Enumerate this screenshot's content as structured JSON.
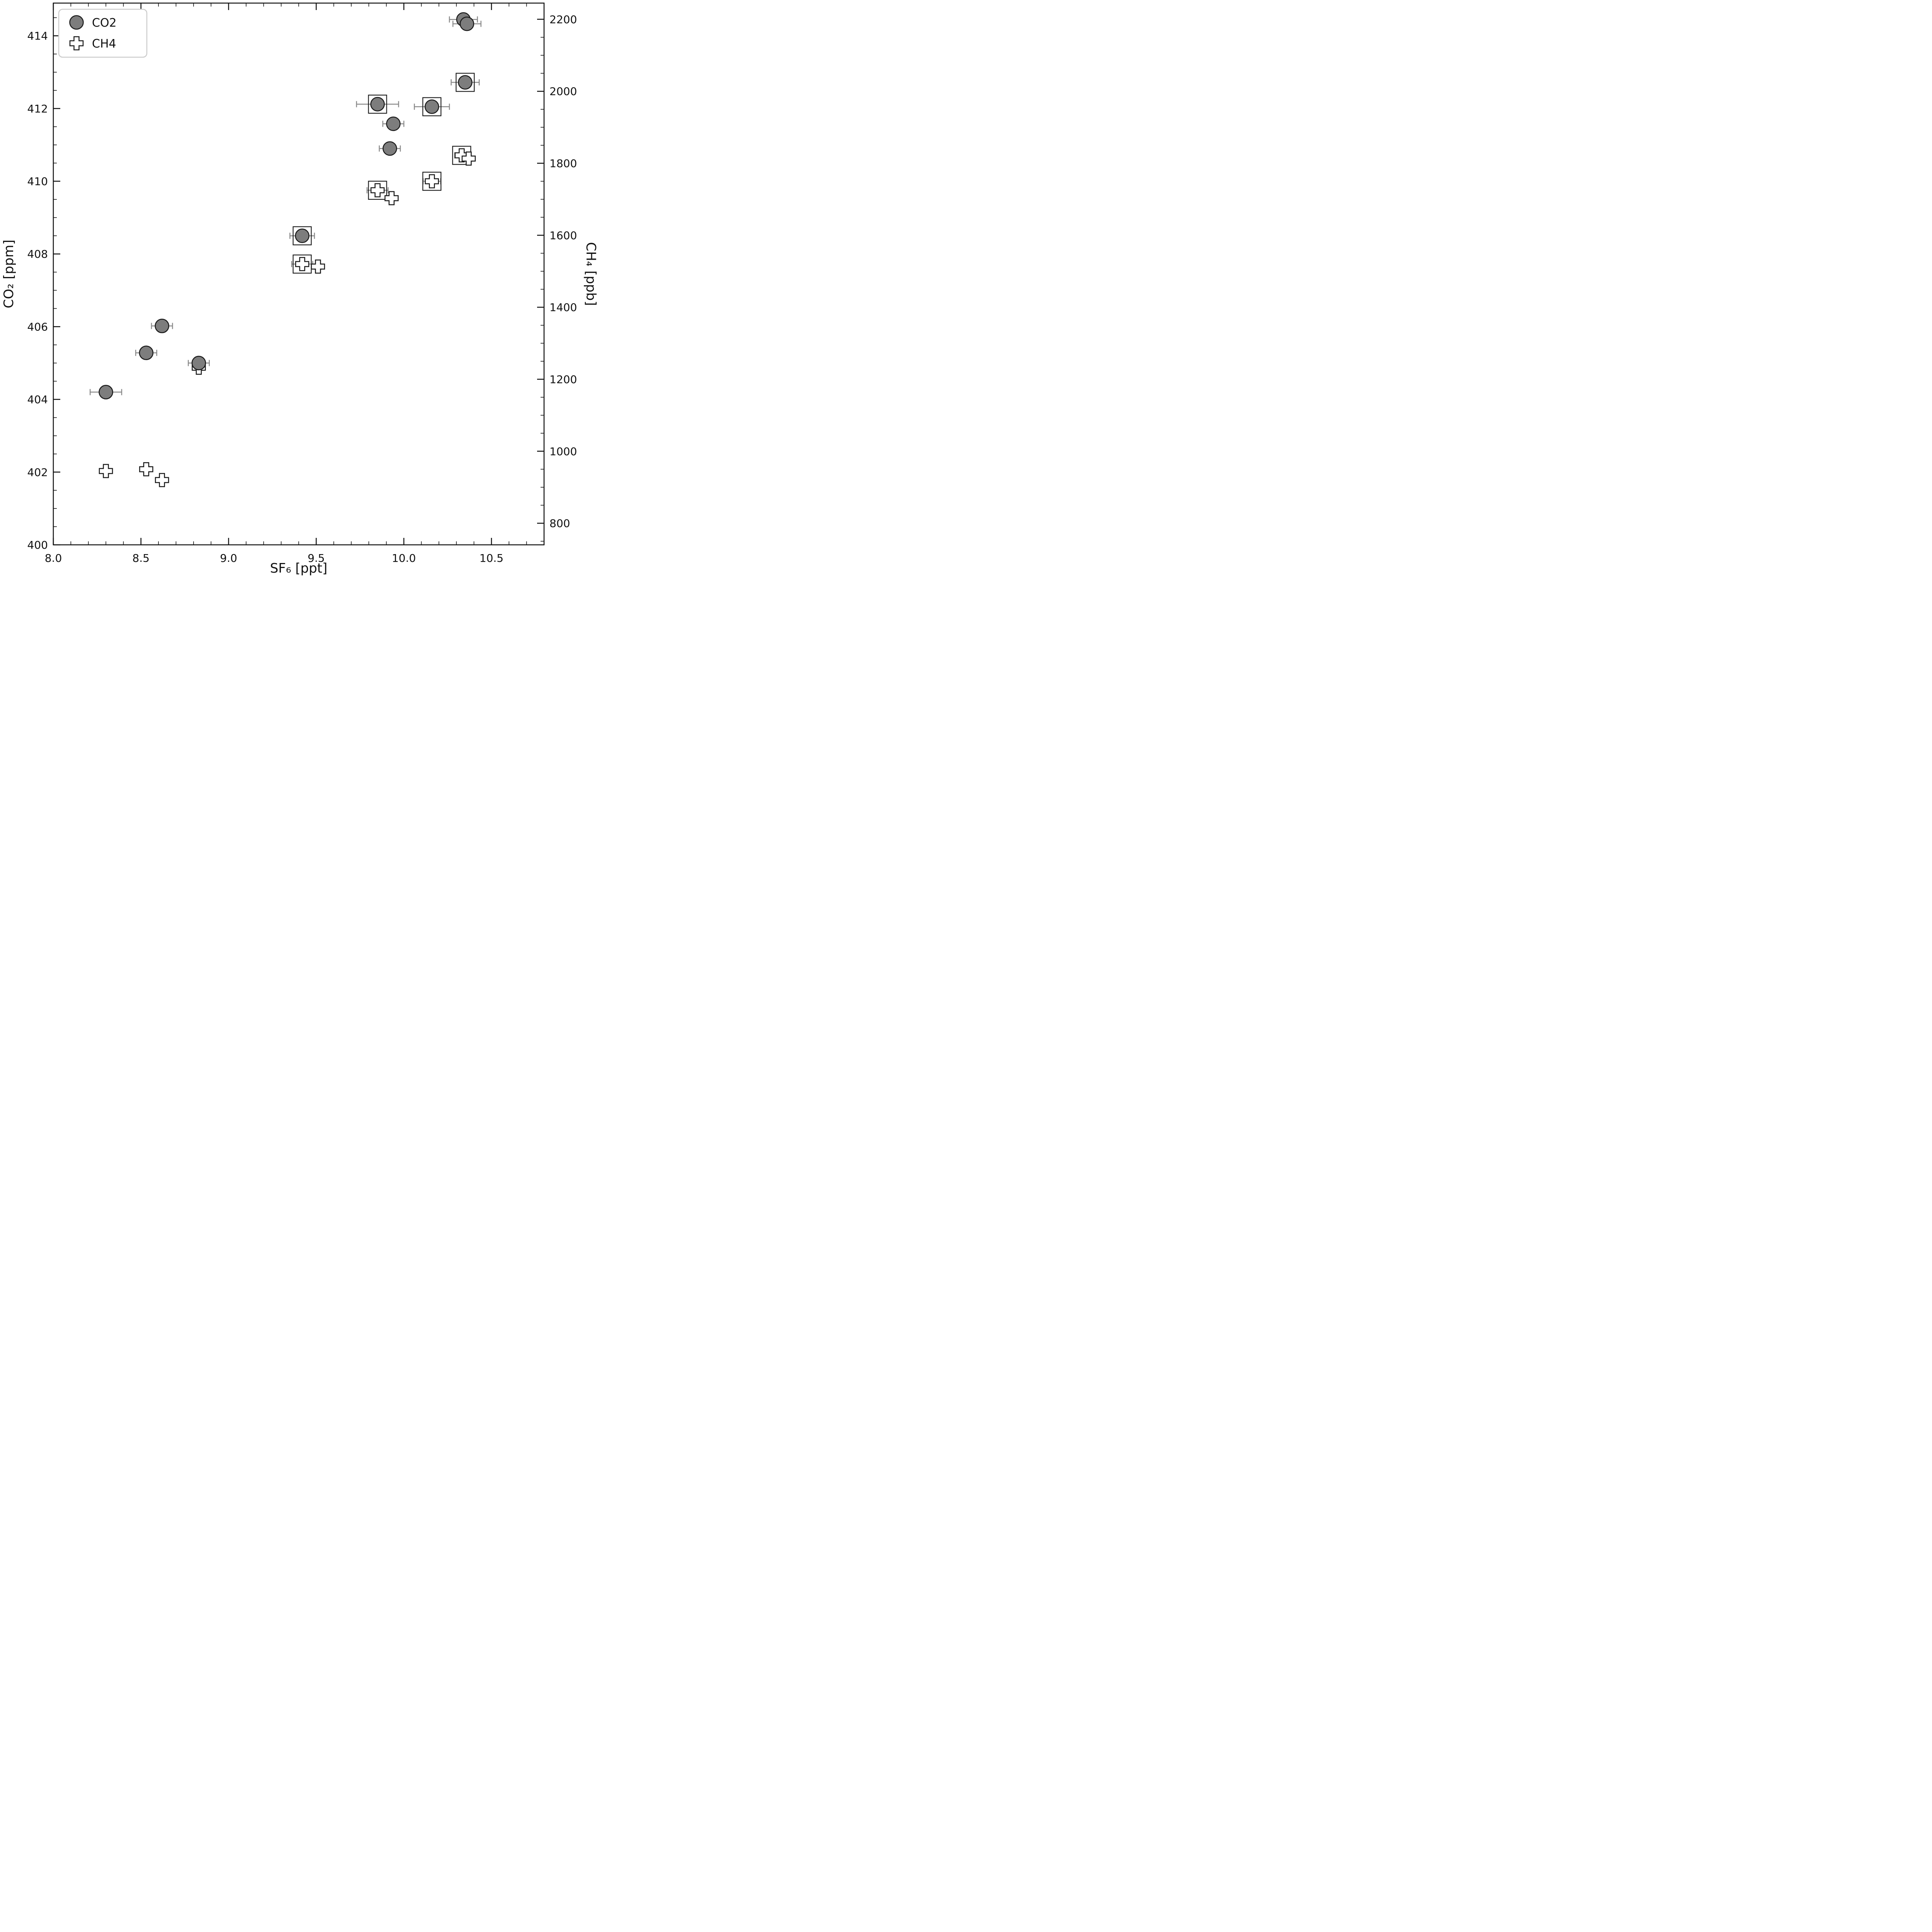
{
  "chart_data": {
    "type": "scatter",
    "title": "",
    "xlabel": "SF₆ [ppt]",
    "ylabel_left": "CO₂ [ppm]",
    "ylabel_right": "CH₄ [ppb]",
    "xlim": [
      8.0,
      10.8
    ],
    "ylim_left": [
      400,
      414.9
    ],
    "ylim_right": [
      740,
      2245
    ],
    "x_ticks": [
      8.0,
      8.5,
      9.0,
      9.5,
      10.0,
      10.5
    ],
    "x_tick_labels": [
      "8.0",
      "8.5",
      "9.0",
      "9.5",
      "10.0",
      "10.5"
    ],
    "x_minor_step": 0.1,
    "y_left_ticks": [
      400,
      402,
      404,
      406,
      408,
      410,
      412,
      414
    ],
    "y_left_tick_labels": [
      "400",
      "402",
      "404",
      "406",
      "408",
      "410",
      "412",
      "414"
    ],
    "y_left_minor_step": 0.5,
    "y_right_ticks": [
      800,
      1000,
      1200,
      1400,
      1600,
      1800,
      2000,
      2200
    ],
    "y_right_tick_labels": [
      "800",
      "1000",
      "1200",
      "1400",
      "1600",
      "1800",
      "2000",
      "2200"
    ],
    "y_right_minor_step": 50,
    "grid": false,
    "legend_position": "upper-left",
    "legend": [
      {
        "label": "CO2",
        "marker": "circle"
      },
      {
        "label": "CH4",
        "marker": "cross"
      }
    ],
    "axis_color": "#111111",
    "errorbar_color": "#8a8a8a",
    "box_color": "#1a1a1a",
    "series": [
      {
        "name": "CO2",
        "axis": "left",
        "marker": "circle",
        "marker_fill": "#7d7d7d",
        "marker_edge": "#1a1a1a",
        "points": [
          {
            "x": 10.34,
            "y": 414.45,
            "xerr": 0.08,
            "boxed": false
          },
          {
            "x": 10.36,
            "y": 414.33,
            "xerr": 0.08,
            "boxed": false
          },
          {
            "x": 10.35,
            "y": 412.72,
            "xerr": 0.08,
            "boxed": true
          },
          {
            "x": 9.85,
            "y": 412.12,
            "xerr": 0.12,
            "boxed": true
          },
          {
            "x": 10.16,
            "y": 412.05,
            "xerr": 0.1,
            "boxed": true
          },
          {
            "x": 9.94,
            "y": 411.58,
            "xerr": 0.06,
            "boxed": false
          },
          {
            "x": 9.92,
            "y": 410.9,
            "xerr": 0.06,
            "boxed": false
          },
          {
            "x": 9.42,
            "y": 408.5,
            "xerr": 0.07,
            "boxed": true
          },
          {
            "x": 8.62,
            "y": 406.02,
            "xerr": 0.06,
            "boxed": false
          },
          {
            "x": 8.53,
            "y": 405.28,
            "xerr": 0.06,
            "boxed": false
          },
          {
            "x": 8.83,
            "y": 405.0,
            "xerr": 0.06,
            "boxed": false
          },
          {
            "x": 8.3,
            "y": 404.2,
            "xerr": 0.09,
            "boxed": false
          }
        ]
      },
      {
        "name": "CH4",
        "axis": "right",
        "marker": "cross",
        "marker_fill": "#ffffff",
        "marker_edge": "#1a1a1a",
        "points": [
          {
            "x": 10.33,
            "y": 1822,
            "xerr": 0.04,
            "boxed": true
          },
          {
            "x": 10.37,
            "y": 1813,
            "xerr": 0.02,
            "boxed": false
          },
          {
            "x": 10.16,
            "y": 1750,
            "xerr": 0.05,
            "boxed": true
          },
          {
            "x": 9.85,
            "y": 1725,
            "xerr": 0.06,
            "boxed": true
          },
          {
            "x": 9.93,
            "y": 1703,
            "xerr": 0.02,
            "boxed": false
          },
          {
            "x": 9.42,
            "y": 1520,
            "xerr": 0.06,
            "boxed": true
          },
          {
            "x": 9.51,
            "y": 1513,
            "xerr": 0.02,
            "boxed": false
          },
          {
            "x": 8.83,
            "y": 1232,
            "xerr": 0.02,
            "boxed": false
          },
          {
            "x": 8.3,
            "y": 945,
            "xerr": 0.02,
            "boxed": false
          },
          {
            "x": 8.53,
            "y": 950,
            "xerr": 0.02,
            "boxed": false
          },
          {
            "x": 8.62,
            "y": 920,
            "xerr": 0.02,
            "boxed": false
          }
        ]
      }
    ]
  }
}
